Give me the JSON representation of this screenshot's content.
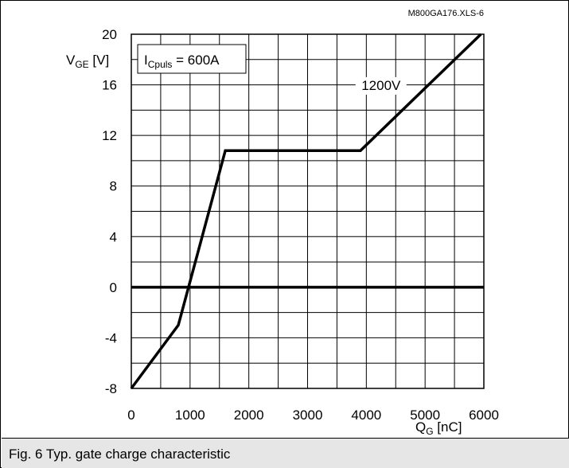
{
  "file_id": "M800GA176.XLS-6",
  "caption": "Fig. 6 Typ. gate charge characteristic",
  "legend_box": {
    "main": "I",
    "sub": "Cpuls",
    "rest": " = 600A"
  },
  "chart_data": {
    "type": "line",
    "title": "",
    "xlabel_main": "Q",
    "xlabel_sub": "G",
    "xlabel_unit": " [nC]",
    "ylabel_main": "V",
    "ylabel_sub": "GE",
    "ylabel_unit": " [V]",
    "xlim": [
      0,
      6000
    ],
    "ylim": [
      -8,
      20
    ],
    "x_ticks": [
      0,
      1000,
      2000,
      3000,
      4000,
      5000,
      6000
    ],
    "y_ticks": [
      -8,
      -4,
      0,
      4,
      8,
      12,
      16,
      20
    ],
    "x_grid_step": 500,
    "y_grid_step": 2,
    "grid": true,
    "reference_line_y": 0,
    "series": [
      {
        "name": "1200V",
        "x": [
          0,
          800,
          1600,
          3900,
          5950
        ],
        "y": [
          -8,
          -3,
          10.8,
          10.8,
          20
        ]
      }
    ],
    "annotations": [
      {
        "text": "1200V",
        "x": 4250,
        "y": 15.6
      }
    ]
  }
}
